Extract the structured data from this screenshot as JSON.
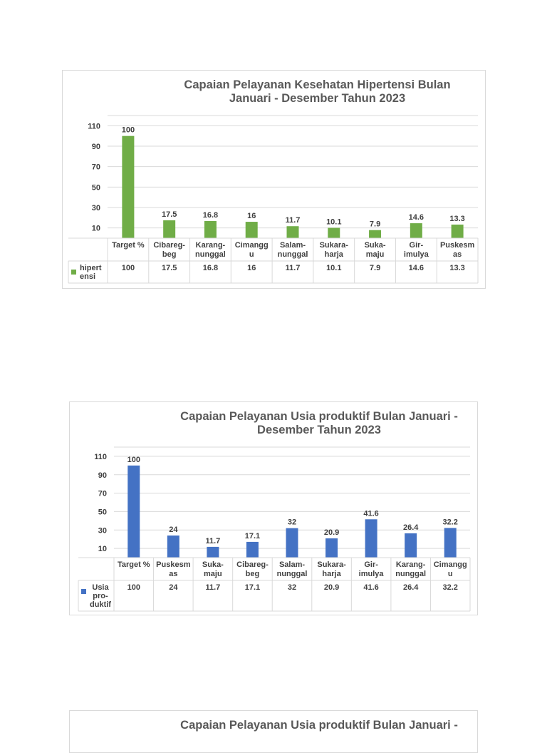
{
  "chart_data": [
    {
      "type": "bar",
      "title": "Capaian Pelayanan Kesehatan Hipertensi Bulan Januari - Desember Tahun 2023",
      "title_lines": [
        "Capaian Pelayanan Kesehatan Hipertensi Bulan",
        "Januari - Desember Tahun 2023"
      ],
      "categories": [
        "Target %",
        "Cibareg-beg",
        "Karang-nunggal",
        "Cimanggu",
        "Salam-nunggal",
        "Sukara-harja",
        "Suka-maju",
        "Gir-imulya",
        "Puskesmas"
      ],
      "category_lines": [
        [
          "Target %"
        ],
        [
          "Cibareg-",
          "beg"
        ],
        [
          "Karang-",
          "nunggal"
        ],
        [
          "Cimangg",
          "u"
        ],
        [
          "Salam-",
          "nunggal"
        ],
        [
          "Sukara-",
          "harja"
        ],
        [
          "Suka-",
          "maju"
        ],
        [
          "Gir-",
          "imulya"
        ],
        [
          "Puskesm",
          "as"
        ]
      ],
      "series": [
        {
          "name": "hipertensi",
          "name_lines": [
            "hipert",
            "ensi"
          ],
          "values": [
            100,
            17.5,
            16.8,
            16,
            11.7,
            10.1,
            7.9,
            14.6,
            13.3
          ],
          "labels": [
            "100",
            "17.5",
            "16.8",
            "16",
            "11.7",
            "10.1",
            "7.9",
            "14.6",
            "13.3"
          ]
        }
      ],
      "yticks": [
        "10",
        "30",
        "50",
        "70",
        "90",
        "110"
      ],
      "ylim": [
        0,
        120
      ],
      "grid": true,
      "legend": "data-table",
      "color": "#70ad47"
    },
    {
      "type": "bar",
      "title": "Capaian Pelayanan Usia produktif Bulan Januari - Desember Tahun 2023",
      "title_lines": [
        "Capaian Pelayanan Usia produktif Bulan Januari -",
        "Desember Tahun 2023"
      ],
      "categories": [
        "Target %",
        "Puskesmas",
        "Suka-maju",
        "Cibareg-beg",
        "Salam-nunggal",
        "Sukara-harja",
        "Gir-imulya",
        "Karang-nunggal",
        "Cimanggu"
      ],
      "category_lines": [
        [
          "Target %"
        ],
        [
          "Puskesm",
          "as"
        ],
        [
          "Suka-",
          "maju"
        ],
        [
          "Cibareg-",
          "beg"
        ],
        [
          "Salam-",
          "nunggal"
        ],
        [
          "Sukara-",
          "harja"
        ],
        [
          "Gir-",
          "imulya"
        ],
        [
          "Karang-",
          "nunggal"
        ],
        [
          "Cimangg",
          "u"
        ]
      ],
      "series": [
        {
          "name": "Usia pro-duktif",
          "name_lines": [
            "Usia",
            "pro-",
            "duktif"
          ],
          "values": [
            100,
            24,
            11.7,
            17.1,
            32,
            20.9,
            41.6,
            26.4,
            32.2
          ],
          "labels": [
            "100",
            "24",
            "11.7",
            "17.1",
            "32",
            "20.9",
            "41.6",
            "26.4",
            "32.2"
          ]
        }
      ],
      "yticks": [
        "10",
        "30",
        "50",
        "70",
        "90",
        "110"
      ],
      "ylim": [
        0,
        120
      ],
      "grid": true,
      "legend": "data-table",
      "color": "#4472c4"
    }
  ],
  "partial_title": "Capaian Pelayanan Usia produktif Bulan Januari -"
}
